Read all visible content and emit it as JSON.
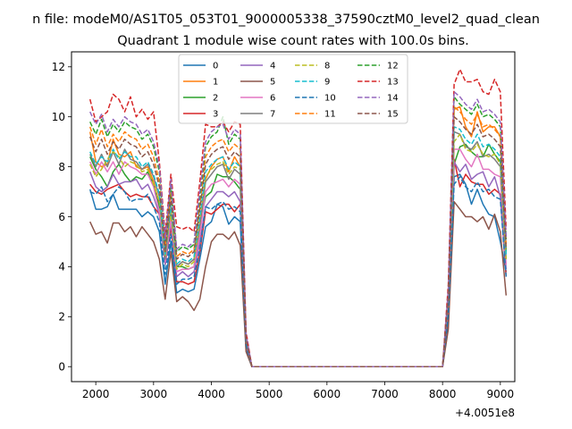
{
  "chart_data": {
    "type": "line",
    "suptitle": "n file: modeM0/AS1T05_053T01_9000005338_37590cztM0_level2_quad_clean",
    "title": "Quadrant 1 module wise count rates with 100.0s bins.",
    "xlabel": "",
    "ylabel": "",
    "x_offset_label": "+4.0051e8",
    "xlim": [
      1580,
      9250
    ],
    "ylim": [
      -0.6,
      12.6
    ],
    "xticks": [
      2000,
      3000,
      4000,
      5000,
      6000,
      7000,
      8000,
      9000
    ],
    "xtick_labels": [
      "2000",
      "3000",
      "4000",
      "5000",
      "6000",
      "7000",
      "8000",
      "9000"
    ],
    "yticks": [
      0,
      2,
      4,
      6,
      8,
      10,
      12
    ],
    "ytick_labels": [
      "0",
      "2",
      "4",
      "6",
      "8",
      "10",
      "12"
    ],
    "grid": false,
    "legend_position": "top-center",
    "legend_columns": 4,
    "x": [
      1900,
      2000,
      2100,
      2200,
      2300,
      2400,
      2500,
      2600,
      2700,
      2800,
      2900,
      3000,
      3100,
      3200,
      3300,
      3400,
      3500,
      3600,
      3700,
      3800,
      3900,
      4000,
      4100,
      4200,
      4300,
      4400,
      4500,
      4600,
      4700,
      4800,
      7800,
      7900,
      8000,
      8100,
      8200,
      8300,
      8400,
      8500,
      8600,
      8700,
      8800,
      8900,
      9000,
      9100
    ],
    "series": [
      {
        "name": "0",
        "color": "#1f77b4",
        "dash": "solid",
        "values": [
          7.1,
          6.3,
          6.3,
          6.4,
          6.9,
          6.3,
          6.3,
          6.3,
          6.3,
          6.0,
          6.2,
          6.0,
          5.4,
          3.3,
          5.0,
          2.95,
          3.1,
          3.0,
          3.1,
          4.3,
          5.6,
          5.8,
          6.5,
          6.4,
          5.7,
          6.0,
          5.8,
          0.7,
          0,
          0,
          0,
          0,
          0,
          1.7,
          7.6,
          7.7,
          7.3,
          6.5,
          7.1,
          6.5,
          6.1,
          6.0,
          5.0,
          3.8
        ]
      },
      {
        "name": "1",
        "color": "#ff7f0e",
        "dash": "solid",
        "values": [
          9.4,
          8.2,
          8.0,
          8.1,
          9.1,
          8.5,
          8.4,
          8.6,
          8.0,
          7.9,
          8.0,
          7.4,
          6.5,
          4.2,
          6.2,
          4.0,
          4.2,
          4.1,
          4.3,
          5.6,
          7.5,
          8.0,
          8.3,
          8.4,
          7.8,
          8.4,
          8.0,
          1.1,
          0,
          0,
          0,
          0,
          0,
          2.7,
          10.3,
          10.4,
          9.6,
          9.2,
          10.2,
          9.4,
          9.6,
          9.6,
          9.2,
          4.6
        ]
      },
      {
        "name": "2",
        "color": "#2ca02c",
        "dash": "solid",
        "values": [
          8.4,
          7.9,
          7.6,
          7.2,
          7.8,
          8.1,
          7.7,
          7.4,
          7.6,
          7.5,
          7.8,
          7.3,
          6.4,
          4.3,
          6.1,
          4.0,
          4.0,
          3.9,
          4.0,
          5.7,
          6.8,
          7.0,
          7.7,
          7.6,
          7.6,
          7.4,
          7.1,
          1.0,
          0,
          0,
          0,
          0,
          0,
          2.5,
          8.1,
          8.8,
          8.9,
          8.6,
          8.4,
          8.4,
          8.9,
          8.5,
          8.2,
          4.6
        ]
      },
      {
        "name": "3",
        "color": "#d62728",
        "dash": "solid",
        "values": [
          7.3,
          7.0,
          6.9,
          7.1,
          7.2,
          7.3,
          7.0,
          6.8,
          6.9,
          6.8,
          6.8,
          6.4,
          6.1,
          4.1,
          5.6,
          3.4,
          3.4,
          3.3,
          3.4,
          4.6,
          6.2,
          6.1,
          6.3,
          6.5,
          6.5,
          6.2,
          6.5,
          0.9,
          0,
          0,
          0,
          0,
          0,
          2.2,
          8.3,
          7.2,
          7.7,
          7.4,
          7.3,
          7.3,
          6.9,
          7.1,
          6.9,
          3.6
        ]
      },
      {
        "name": "4",
        "color": "#9467bd",
        "dash": "solid",
        "values": [
          7.8,
          7.2,
          7.0,
          7.2,
          7.7,
          7.3,
          7.4,
          7.4,
          7.5,
          7.1,
          7.3,
          6.8,
          6.1,
          4.1,
          5.8,
          3.6,
          3.8,
          3.6,
          3.8,
          5.0,
          6.4,
          6.7,
          7.0,
          7.0,
          6.8,
          7.0,
          6.6,
          0.9,
          0,
          0,
          0,
          0,
          0,
          2.4,
          8.2,
          7.8,
          8.1,
          7.5,
          7.7,
          7.8,
          7.2,
          7.6,
          6.8,
          3.9
        ]
      },
      {
        "name": "5",
        "color": "#8c564b",
        "dash": "solid",
        "values": [
          5.8,
          5.3,
          5.4,
          4.95,
          5.75,
          5.75,
          5.4,
          5.6,
          5.2,
          5.6,
          5.3,
          5.0,
          4.3,
          2.7,
          4.6,
          2.6,
          2.8,
          2.6,
          2.25,
          2.7,
          4.0,
          5.0,
          5.3,
          5.3,
          5.1,
          5.4,
          4.85,
          0.6,
          0,
          0,
          0,
          0,
          0,
          1.5,
          6.6,
          6.3,
          6.0,
          6.0,
          5.8,
          6.0,
          5.5,
          6.1,
          5.4,
          2.85
        ]
      },
      {
        "name": "6",
        "color": "#e377c2",
        "dash": "solid",
        "values": [
          8.2,
          7.7,
          8.2,
          7.8,
          8.2,
          7.7,
          8.2,
          8.0,
          7.9,
          7.7,
          7.7,
          7.2,
          6.2,
          4.2,
          5.9,
          3.8,
          3.9,
          3.9,
          4.0,
          5.3,
          7.0,
          7.3,
          7.4,
          7.5,
          7.2,
          7.5,
          7.3,
          1.0,
          0,
          0,
          0,
          0,
          0,
          2.5,
          8.7,
          8.7,
          8.3,
          8.0,
          8.5,
          7.9,
          7.9,
          7.7,
          7.6,
          4.1
        ]
      },
      {
        "name": "7",
        "color": "#7f7f7f",
        "dash": "solid",
        "values": [
          8.5,
          8.0,
          8.5,
          8.0,
          8.6,
          8.1,
          8.7,
          8.3,
          8.2,
          7.9,
          8.1,
          7.6,
          6.8,
          4.3,
          6.4,
          4.0,
          4.2,
          4.1,
          4.3,
          5.7,
          7.4,
          7.7,
          8.0,
          8.1,
          7.5,
          7.9,
          7.7,
          1.0,
          0,
          0,
          0,
          0,
          0,
          2.6,
          9.4,
          9.3,
          8.8,
          8.7,
          9.0,
          8.4,
          8.5,
          8.3,
          8.0,
          4.3
        ]
      },
      {
        "name": "8",
        "color": "#bcbd22",
        "dash": "dashed",
        "values": [
          8.1,
          7.6,
          7.9,
          8.3,
          8.6,
          8.4,
          8.0,
          8.2,
          8.1,
          7.8,
          7.9,
          7.3,
          6.6,
          4.4,
          6.2,
          3.9,
          4.1,
          4.0,
          4.2,
          5.9,
          7.6,
          7.9,
          8.1,
          8.2,
          7.7,
          8.0,
          7.9,
          1.0,
          0,
          0,
          0,
          0,
          0,
          2.6,
          9.0,
          9.3,
          8.7,
          8.6,
          8.9,
          8.5,
          8.4,
          8.5,
          8.1,
          4.3
        ]
      },
      {
        "name": "9",
        "color": "#17becf",
        "dash": "dashed",
        "values": [
          8.6,
          8.1,
          8.4,
          8.2,
          8.7,
          8.3,
          8.6,
          8.4,
          8.4,
          8.0,
          8.2,
          7.7,
          6.9,
          4.5,
          6.5,
          4.1,
          4.3,
          4.2,
          4.4,
          6.0,
          7.8,
          8.1,
          8.3,
          8.4,
          7.9,
          8.2,
          8.0,
          1.1,
          0,
          0,
          0,
          0,
          0,
          2.7,
          9.6,
          9.5,
          9.1,
          8.9,
          9.3,
          8.8,
          8.9,
          8.7,
          8.4,
          4.5
        ]
      },
      {
        "name": "10",
        "color": "#1f77b4",
        "dash": "dashed",
        "values": [
          7.0,
          6.9,
          7.2,
          6.6,
          6.9,
          7.2,
          7.0,
          6.6,
          6.7,
          6.7,
          6.9,
          6.4,
          5.8,
          3.7,
          5.3,
          3.3,
          3.5,
          3.5,
          3.6,
          4.7,
          6.4,
          6.3,
          6.5,
          6.6,
          6.3,
          6.4,
          6.2,
          0.9,
          0,
          0,
          0,
          0,
          0,
          2.1,
          7.3,
          7.6,
          7.2,
          7.0,
          7.4,
          7.0,
          7.1,
          6.8,
          6.7,
          3.6
        ]
      },
      {
        "name": "11",
        "color": "#ff7f0e",
        "dash": "dashed",
        "values": [
          9.6,
          8.9,
          9.5,
          8.8,
          9.3,
          9.0,
          9.4,
          9.2,
          9.1,
          8.7,
          8.9,
          8.4,
          7.4,
          4.8,
          7.0,
          4.4,
          4.6,
          4.5,
          4.7,
          6.5,
          8.4,
          8.8,
          9.0,
          9.1,
          8.6,
          8.9,
          8.7,
          1.2,
          0,
          0,
          0,
          0,
          0,
          2.9,
          10.4,
          10.2,
          9.9,
          9.7,
          10.1,
          9.6,
          9.7,
          9.5,
          9.2,
          4.9
        ]
      },
      {
        "name": "12",
        "color": "#2ca02c",
        "dash": "dashed",
        "values": [
          9.8,
          9.3,
          9.9,
          9.2,
          9.7,
          9.4,
          9.8,
          9.6,
          9.5,
          9.1,
          9.3,
          8.8,
          7.8,
          5.0,
          7.3,
          4.6,
          4.8,
          4.7,
          4.9,
          6.8,
          8.8,
          9.2,
          9.4,
          10.0,
          8.9,
          9.3,
          9.1,
          1.2,
          0,
          0,
          0,
          0,
          0,
          3.0,
          10.8,
          10.5,
          10.3,
          10.1,
          10.5,
          10.0,
          10.1,
          9.9,
          9.6,
          5.1
        ]
      },
      {
        "name": "13",
        "color": "#d62728",
        "dash": "dashed",
        "values": [
          10.7,
          9.8,
          10.0,
          10.2,
          10.9,
          10.7,
          10.2,
          10.8,
          10.0,
          10.3,
          9.9,
          10.2,
          8.2,
          5.3,
          7.7,
          5.6,
          5.5,
          5.6,
          5.4,
          7.4,
          9.7,
          9.6,
          9.6,
          9.8,
          9.4,
          9.8,
          9.7,
          1.4,
          0,
          0,
          0,
          0,
          0,
          3.3,
          11.3,
          11.9,
          11.4,
          11.4,
          11.5,
          11.0,
          10.9,
          11.5,
          11.0,
          5.5
        ]
      },
      {
        "name": "14",
        "color": "#9467bd",
        "dash": "dashed",
        "values": [
          10.2,
          9.7,
          10.1,
          9.4,
          9.9,
          9.6,
          10.0,
          9.8,
          9.7,
          9.3,
          9.5,
          9.0,
          8.0,
          5.1,
          7.5,
          4.7,
          4.9,
          4.8,
          5.0,
          7.0,
          9.0,
          9.4,
          9.6,
          9.7,
          9.1,
          9.5,
          9.3,
          1.3,
          0,
          0,
          0,
          0,
          0,
          3.1,
          11.0,
          10.8,
          10.5,
          10.3,
          10.7,
          10.2,
          10.3,
          10.1,
          9.8,
          5.2
        ]
      },
      {
        "name": "15",
        "color": "#8c564b",
        "dash": "dashed",
        "values": [
          9.2,
          8.6,
          9.1,
          8.5,
          9.0,
          8.7,
          9.1,
          8.9,
          8.8,
          8.4,
          8.6,
          8.1,
          7.2,
          4.6,
          6.8,
          4.3,
          4.5,
          4.4,
          4.6,
          6.3,
          8.1,
          8.5,
          8.7,
          8.8,
          8.3,
          8.6,
          8.4,
          1.1,
          0,
          0,
          0,
          0,
          0,
          2.8,
          10.0,
          9.8,
          9.5,
          9.3,
          9.7,
          9.2,
          9.3,
          9.1,
          8.8,
          4.7
        ]
      }
    ]
  }
}
